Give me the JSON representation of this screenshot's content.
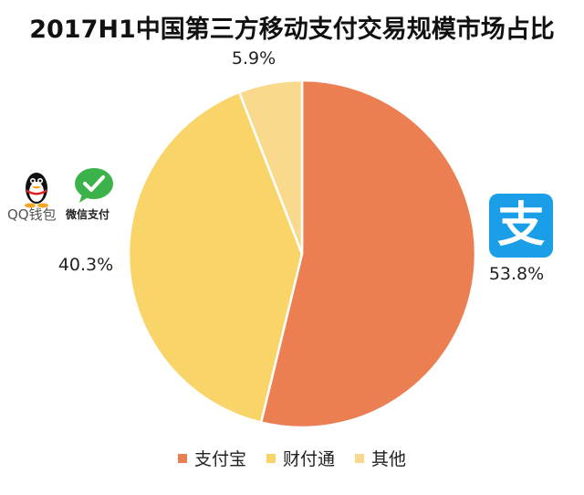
{
  "chart_data": {
    "type": "pie",
    "title": "2017H1中国第三方移动支付交易规模市场占比",
    "categories": [
      "支付宝",
      "财付通",
      "其他"
    ],
    "values": [
      53.8,
      40.3,
      5.9
    ],
    "value_labels": [
      "53.8%",
      "40.3%",
      "5.9%"
    ],
    "colors": [
      "#ec7f52",
      "#f9d469",
      "#f9d98b"
    ],
    "legend_position": "bottom",
    "start_angle_deg": 0,
    "direction": "clockwise"
  },
  "logos": {
    "qq_wallet_label": "QQ钱包",
    "wechat_pay_label": "微信支付",
    "alipay_glyph": "支"
  }
}
